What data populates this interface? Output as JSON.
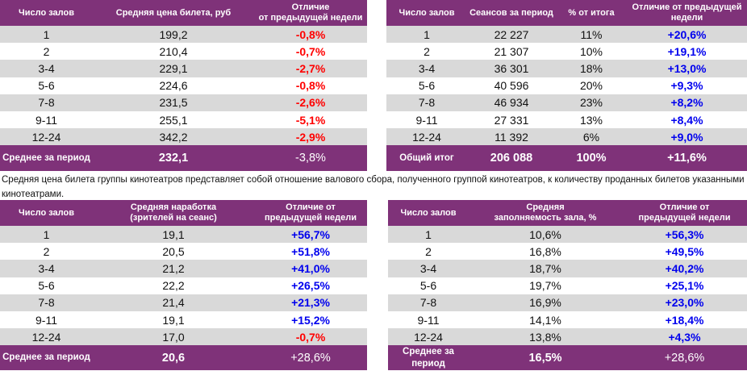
{
  "colors": {
    "header_bg": "#7f3279",
    "stripe": "#d9d9d9",
    "negative": "#ff0000",
    "positive": "#0000ee"
  },
  "table_price": {
    "headers": [
      "Число залов",
      "Средняя цена билета, руб",
      "Отличие\nот предыдущей недели"
    ],
    "rows": [
      {
        "halls": "1",
        "value": "199,2",
        "diff": "-0,8%"
      },
      {
        "halls": "2",
        "value": "210,4",
        "diff": "-0,7%"
      },
      {
        "halls": "3-4",
        "value": "229,1",
        "diff": "-2,7%"
      },
      {
        "halls": "5-6",
        "value": "224,6",
        "diff": "-0,8%"
      },
      {
        "halls": "7-8",
        "value": "231,5",
        "diff": "-2,6%"
      },
      {
        "halls": "9-11",
        "value": "255,1",
        "diff": "-5,1%"
      },
      {
        "halls": "12-24",
        "value": "342,2",
        "diff": "-2,9%"
      }
    ],
    "footer": {
      "label": "Среднее за период",
      "value": "232,1",
      "diff": "-3,8%"
    }
  },
  "table_sessions": {
    "headers": [
      "Число залов",
      "Сеансов за период",
      "% от итога",
      "Отличие от предыдущей недели"
    ],
    "rows": [
      {
        "halls": "1",
        "value": "22 227",
        "share": "11%",
        "diff": "+20,6%"
      },
      {
        "halls": "2",
        "value": "21 307",
        "share": "10%",
        "diff": "+19,1%"
      },
      {
        "halls": "3-4",
        "value": "36 301",
        "share": "18%",
        "diff": "+13,0%"
      },
      {
        "halls": "5-6",
        "value": "40 596",
        "share": "20%",
        "diff": "+9,3%"
      },
      {
        "halls": "7-8",
        "value": "46 934",
        "share": "23%",
        "diff": "+8,2%"
      },
      {
        "halls": "9-11",
        "value": "27 331",
        "share": "13%",
        "diff": "+8,4%"
      },
      {
        "halls": "12-24",
        "value": "11 392",
        "share": "6%",
        "diff": "+9,0%"
      }
    ],
    "footer": {
      "label": "Общий итог",
      "value": "206 088",
      "share": "100%",
      "diff": "+11,6%"
    }
  },
  "note": "Средняя цена билета группы кинотеатров представляет собой отношение валового сбора, полученного группой кинотеатров, к количеству проданных билетов указанными кинотеатрами.",
  "table_attendance": {
    "headers": [
      "Число залов",
      "Средняя наработка (зрителей на сеанс)",
      "Отличие от предыдущей недели"
    ],
    "rows": [
      {
        "halls": "1",
        "value": "19,1",
        "diff": "+56,7%"
      },
      {
        "halls": "2",
        "value": "20,5",
        "diff": "+51,8%"
      },
      {
        "halls": "3-4",
        "value": "21,2",
        "diff": "+41,0%"
      },
      {
        "halls": "5-6",
        "value": "22,2",
        "diff": "+26,5%"
      },
      {
        "halls": "7-8",
        "value": "21,4",
        "diff": "+21,3%"
      },
      {
        "halls": "9-11",
        "value": "19,1",
        "diff": "+15,2%"
      },
      {
        "halls": "12-24",
        "value": "17,0",
        "diff": "-0,7%"
      }
    ],
    "footer": {
      "label": "Среднее за период",
      "value": "20,6",
      "diff": "+28,6%"
    }
  },
  "table_occupancy": {
    "headers": [
      "Число залов",
      "Средняя заполняемость зала, %",
      "Отличие от предыдущей недели"
    ],
    "rows": [
      {
        "halls": "1",
        "value": "10,6%",
        "diff": "+56,3%"
      },
      {
        "halls": "2",
        "value": "16,8%",
        "diff": "+49,5%"
      },
      {
        "halls": "3-4",
        "value": "18,7%",
        "diff": "+40,2%"
      },
      {
        "halls": "5-6",
        "value": "19,7%",
        "diff": "+25,1%"
      },
      {
        "halls": "7-8",
        "value": "16,9%",
        "diff": "+23,0%"
      },
      {
        "halls": "9-11",
        "value": "14,1%",
        "diff": "+18,4%"
      },
      {
        "halls": "12-24",
        "value": "13,8%",
        "diff": "+4,3%"
      }
    ],
    "footer": {
      "label": "Среднее за период",
      "value": "16,5%",
      "diff": "+28,6%"
    }
  }
}
